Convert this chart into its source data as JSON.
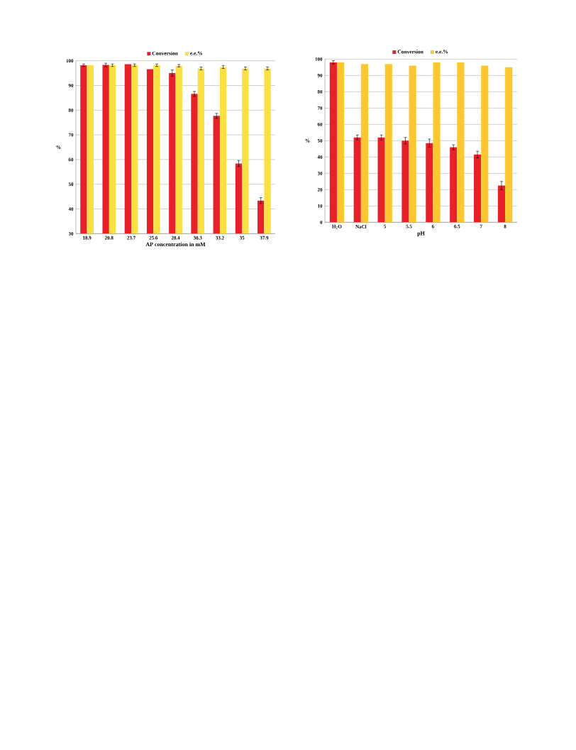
{
  "chart_data": [
    {
      "type": "bar",
      "categories": [
        "18.9",
        "20.8",
        "23.7",
        "25.6",
        "28.4",
        "30.3",
        "33.2",
        "35",
        "37.9"
      ],
      "xlabel": "AP concentration in mM",
      "ylabel": "%",
      "ylim": [
        30,
        100
      ],
      "yticks": [
        30,
        40,
        50,
        60,
        70,
        80,
        90,
        100
      ],
      "grid": "y",
      "legend": "top",
      "series": [
        {
          "name": "Conversion",
          "color": "#e8202a",
          "values": [
            98.2,
            98.3,
            98.6,
            96.6,
            95.0,
            86.6,
            77.7,
            58.4,
            43.4
          ],
          "errors": [
            0.5,
            0.7,
            null,
            null,
            1.3,
            1.0,
            1.0,
            1.2,
            1.2
          ]
        },
        {
          "name": "e.e.%",
          "color": "#fbe044",
          "values": [
            98.2,
            98.2,
            98.2,
            98.2,
            98.0,
            96.9,
            97.5,
            96.9,
            96.9
          ],
          "errors": [
            null,
            0.5,
            0.5,
            0.5,
            0.5,
            0.6,
            0.6,
            0.6,
            0.6
          ]
        }
      ]
    },
    {
      "type": "bar",
      "categories": [
        "H$_{2}$O",
        "NaCl",
        "5",
        "5.5",
        "6",
        "6.5",
        "7",
        "8"
      ],
      "xlabel": "pH",
      "ylabel": "%",
      "ylim": [
        0,
        100
      ],
      "yticks": [
        0,
        10,
        20,
        30,
        40,
        50,
        60,
        70,
        80,
        90,
        100
      ],
      "grid": "y",
      "legend": "top",
      "series": [
        {
          "name": "Conversion",
          "color": "#e8202a",
          "values": [
            98,
            52,
            52,
            50,
            48.5,
            46,
            41.5,
            22.5
          ],
          "errors": [
            1,
            1.5,
            1.5,
            2,
            2.5,
            1.5,
            2,
            2.5
          ]
        },
        {
          "name": "e.e.%",
          "color": "#fdc82f",
          "values": [
            98,
            97,
            97,
            96,
            98,
            98,
            96,
            95
          ]
        }
      ]
    }
  ]
}
